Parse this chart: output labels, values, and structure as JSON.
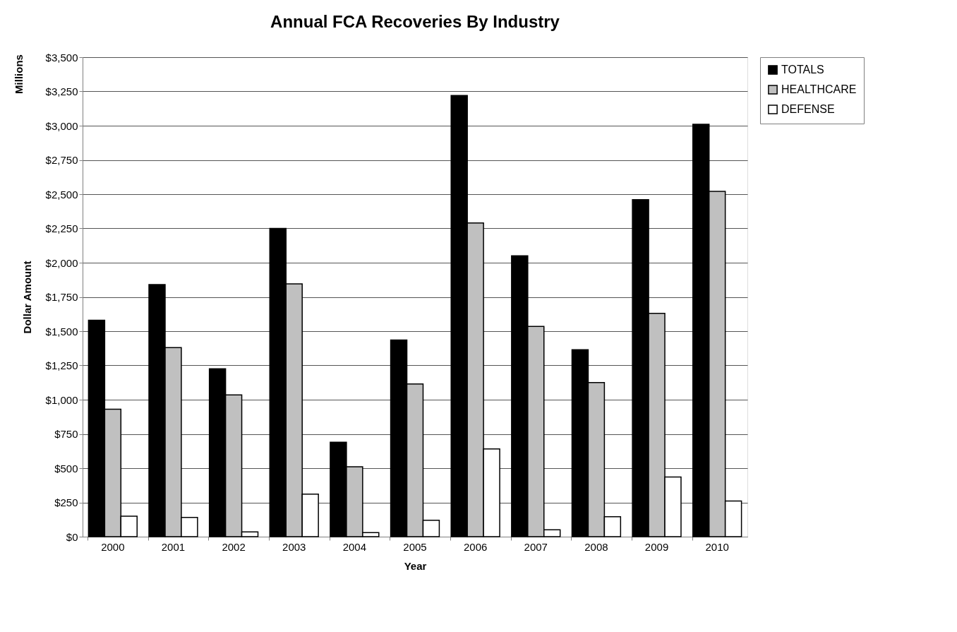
{
  "chart_data": {
    "type": "bar",
    "title": "Annual FCA Recoveries By Industry",
    "xlabel": "Year",
    "ylabel": "Dollar Amount",
    "annotations": [
      "Millions"
    ],
    "categories": [
      "2000",
      "2001",
      "2002",
      "2003",
      "2004",
      "2005",
      "2006",
      "2007",
      "2008",
      "2009",
      "2010"
    ],
    "series": [
      {
        "name": "TOTALS",
        "color": "#000000",
        "values": [
          1580,
          1840,
          1225,
          2250,
          690,
          1435,
          3220,
          2050,
          1365,
          2460,
          3010
        ]
      },
      {
        "name": "HEALTHCARE",
        "color": "#c0c0c0",
        "values": [
          930,
          1380,
          1035,
          1845,
          510,
          1115,
          2290,
          1535,
          1125,
          1630,
          2520
        ]
      },
      {
        "name": "DEFENSE",
        "color": "#ffffff",
        "values": [
          150,
          140,
          35,
          310,
          30,
          120,
          640,
          50,
          145,
          435,
          260
        ]
      }
    ],
    "ylim": [
      0,
      3500
    ],
    "yticks": [
      {
        "value": 0,
        "label": "$0"
      },
      {
        "value": 250,
        "label": "$250"
      },
      {
        "value": 500,
        "label": "$500"
      },
      {
        "value": 750,
        "label": "$750"
      },
      {
        "value": 1000,
        "label": "$1,000"
      },
      {
        "value": 1250,
        "label": "$1,250"
      },
      {
        "value": 1500,
        "label": "$1,500"
      },
      {
        "value": 1750,
        "label": "$1,750"
      },
      {
        "value": 2000,
        "label": "$2,000"
      },
      {
        "value": 2250,
        "label": "$2,250"
      },
      {
        "value": 2500,
        "label": "$2,500"
      },
      {
        "value": 2750,
        "label": "$2,750"
      },
      {
        "value": 3000,
        "label": "$3,000"
      },
      {
        "value": 3250,
        "label": "$3,250"
      },
      {
        "value": 3500,
        "label": "$3,500"
      }
    ],
    "grid": "y",
    "legend": "right"
  }
}
